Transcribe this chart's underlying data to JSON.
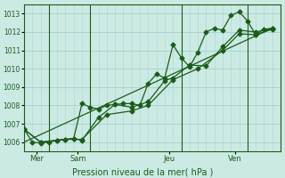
{
  "title": "Pression niveau de la mer( hPa )",
  "ylabel_ticks": [
    1006,
    1007,
    1008,
    1009,
    1010,
    1011,
    1012,
    1013
  ],
  "ylim": [
    1005.5,
    1013.5
  ],
  "xlim": [
    0,
    31
  ],
  "background_color": "#cceae4",
  "grid_color": "#aad4cc",
  "line_color": "#1a5c1a",
  "xtick_labels": [
    "Mer",
    "Sam",
    "Jeu",
    "Ven"
  ],
  "xtick_positions": [
    1.5,
    6.5,
    17.5,
    25.5
  ],
  "vline_positions": [
    3,
    8,
    19,
    27
  ],
  "series1": [
    [
      0,
      1006.7
    ],
    [
      1,
      1006.0
    ],
    [
      2,
      1005.95
    ],
    [
      3,
      1006.0
    ],
    [
      4,
      1006.1
    ],
    [
      5,
      1006.15
    ],
    [
      6,
      1006.2
    ],
    [
      7,
      1008.1
    ],
    [
      8,
      1007.9
    ],
    [
      9,
      1007.8
    ],
    [
      10,
      1008.0
    ],
    [
      11,
      1008.05
    ],
    [
      12,
      1008.1
    ],
    [
      13,
      1008.1
    ],
    [
      14,
      1008.0
    ],
    [
      15,
      1009.2
    ],
    [
      16,
      1009.7
    ],
    [
      17,
      1009.5
    ],
    [
      18,
      1011.3
    ],
    [
      19,
      1010.6
    ],
    [
      20,
      1010.1
    ],
    [
      21,
      1010.9
    ],
    [
      22,
      1012.0
    ],
    [
      23,
      1012.2
    ],
    [
      24,
      1012.1
    ],
    [
      25,
      1012.9
    ],
    [
      26,
      1013.1
    ],
    [
      27,
      1012.6
    ],
    [
      28,
      1011.85
    ],
    [
      29,
      1012.15
    ],
    [
      30,
      1012.2
    ]
  ],
  "series2": [
    [
      0,
      1006.7
    ],
    [
      2,
      1006.0
    ],
    [
      4,
      1006.1
    ],
    [
      6,
      1006.2
    ],
    [
      7,
      1006.1
    ],
    [
      9,
      1007.35
    ],
    [
      11,
      1008.05
    ],
    [
      13,
      1007.9
    ],
    [
      15,
      1008.2
    ],
    [
      17,
      1009.35
    ],
    [
      18,
      1009.5
    ],
    [
      20,
      1010.2
    ],
    [
      22,
      1010.15
    ],
    [
      24,
      1011.2
    ],
    [
      26,
      1012.1
    ],
    [
      28,
      1012.0
    ],
    [
      30,
      1012.2
    ]
  ],
  "series3": [
    [
      0,
      1006.7
    ],
    [
      2,
      1006.0
    ],
    [
      5,
      1006.15
    ],
    [
      7,
      1006.15
    ],
    [
      10,
      1007.5
    ],
    [
      13,
      1007.7
    ],
    [
      15,
      1008.0
    ],
    [
      18,
      1009.4
    ],
    [
      21,
      1010.0
    ],
    [
      24,
      1011.0
    ],
    [
      26,
      1011.9
    ],
    [
      28,
      1011.85
    ],
    [
      30,
      1012.15
    ]
  ],
  "series4_linear": [
    [
      0,
      1006.0
    ],
    [
      30,
      1012.2
    ]
  ]
}
